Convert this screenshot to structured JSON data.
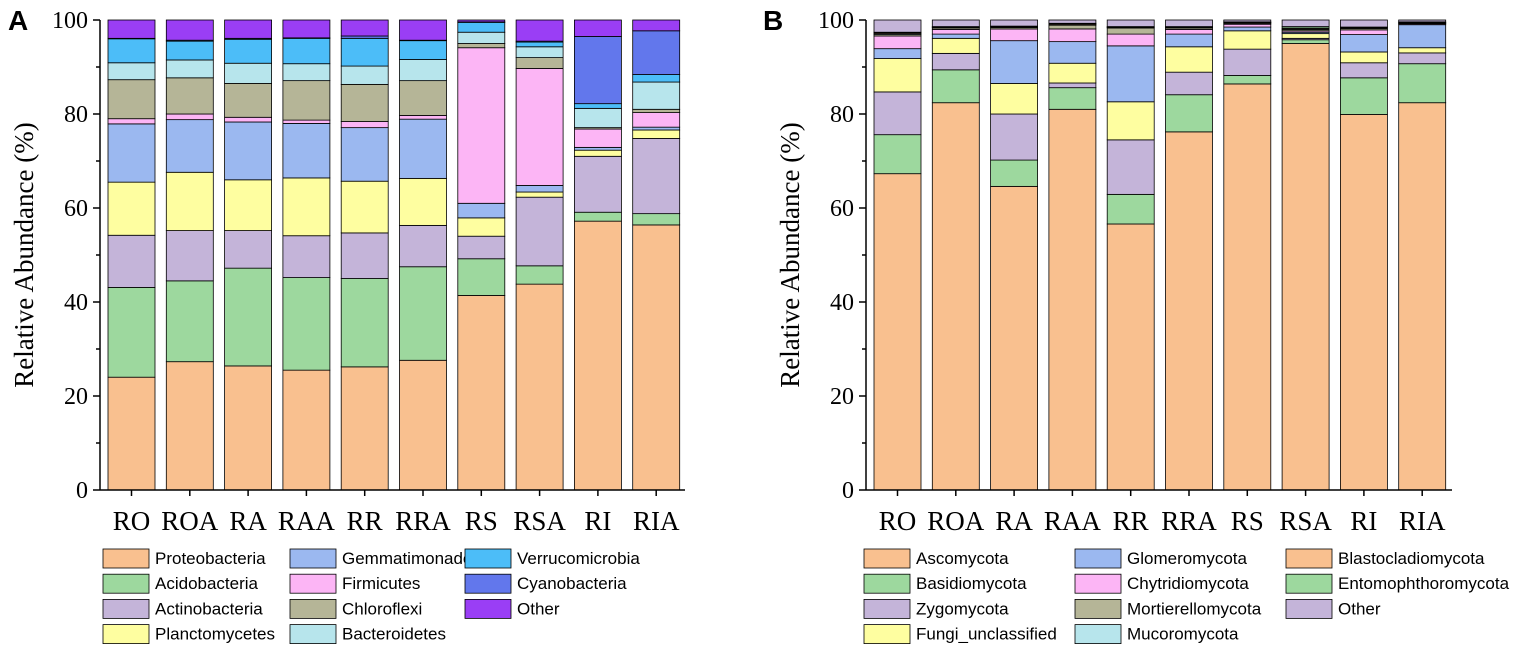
{
  "chart_data": [
    {
      "type": "bar",
      "stacked": true,
      "panel": "A",
      "xlabel": "",
      "ylabel": "Relative Abundance (%)",
      "ylim": [
        0,
        100
      ],
      "yticks": [
        0,
        20,
        40,
        60,
        80,
        100
      ],
      "categories": [
        "RO",
        "ROA",
        "RA",
        "RAA",
        "RR",
        "RRA",
        "RS",
        "RSA",
        "RI",
        "RIA"
      ],
      "legend_columns": 3,
      "series": [
        {
          "name": "Proteobacteria",
          "color": "#F9C08F",
          "values": [
            24.0,
            27.3,
            26.4,
            25.5,
            26.2,
            27.6,
            41.4,
            43.8,
            57.2,
            56.4
          ]
        },
        {
          "name": "Acidobacteria",
          "color": "#9DD89E",
          "values": [
            19.1,
            17.2,
            20.8,
            19.7,
            18.8,
            19.9,
            7.8,
            3.9,
            1.9,
            2.4
          ]
        },
        {
          "name": "Actinobacteria",
          "color": "#C4B4D9",
          "values": [
            11.1,
            10.7,
            8.0,
            8.9,
            9.7,
            8.8,
            4.8,
            14.6,
            11.9,
            16.0
          ]
        },
        {
          "name": "Planctomycetes",
          "color": "#FEFEA0",
          "values": [
            11.3,
            12.4,
            10.8,
            12.3,
            11.0,
            10.0,
            3.9,
            1.1,
            1.3,
            1.8
          ]
        },
        {
          "name": "Gemmatimonadetes",
          "color": "#9BB8F0",
          "values": [
            12.4,
            11.2,
            12.3,
            11.6,
            11.4,
            12.6,
            3.1,
            1.4,
            0.6,
            0.6
          ]
        },
        {
          "name": "Firmicutes",
          "color": "#FCB5F5",
          "values": [
            1.1,
            1.2,
            1.0,
            0.7,
            1.3,
            0.8,
            33.1,
            24.9,
            3.9,
            3.1
          ]
        },
        {
          "name": "Chloroflexi",
          "color": "#B5B597",
          "values": [
            8.3,
            7.7,
            7.2,
            8.4,
            7.9,
            7.4,
            0.9,
            2.3,
            0.3,
            0.7
          ]
        },
        {
          "name": "Bacteroidetes",
          "color": "#B7E5EC",
          "values": [
            3.6,
            3.8,
            4.3,
            3.6,
            3.9,
            4.5,
            2.4,
            2.3,
            4.1,
            5.8
          ]
        },
        {
          "name": "Verrucomicrobia",
          "color": "#4CBDF8",
          "values": [
            5.1,
            4.0,
            5.1,
            5.4,
            5.9,
            4.0,
            2.1,
            1.0,
            1.0,
            1.6
          ]
        },
        {
          "name": "Cyanobacteria",
          "color": "#6277EC",
          "values": [
            0.1,
            0.2,
            0.2,
            0.1,
            0.5,
            0.1,
            0.1,
            0.2,
            14.3,
            9.3
          ]
        },
        {
          "name": "Other",
          "color": "#9A3EF5",
          "values": [
            3.9,
            4.3,
            3.9,
            3.8,
            3.4,
            4.3,
            0.4,
            4.5,
            3.5,
            2.3
          ]
        }
      ]
    },
    {
      "type": "bar",
      "stacked": true,
      "panel": "B",
      "xlabel": "",
      "ylabel": "Relative Abundance (%)",
      "ylim": [
        0,
        100
      ],
      "yticks": [
        0,
        20,
        40,
        60,
        80,
        100
      ],
      "categories": [
        "RO",
        "ROA",
        "RA",
        "RAA",
        "RR",
        "RRA",
        "RS",
        "RSA",
        "RI",
        "RIA"
      ],
      "legend_columns": 3,
      "series": [
        {
          "name": "Ascomycota",
          "color": "#F9C08F",
          "values": [
            67.3,
            82.4,
            64.6,
            81.0,
            56.6,
            76.2,
            86.4,
            95.0,
            79.9,
            82.4
          ]
        },
        {
          "name": "Basidiomycota",
          "color": "#9DD89E",
          "values": [
            8.3,
            7.0,
            5.6,
            4.6,
            6.3,
            7.9,
            1.8,
            0.8,
            7.8,
            8.3
          ]
        },
        {
          "name": "Zygomycota",
          "color": "#C4B4D9",
          "values": [
            9.1,
            3.5,
            9.8,
            1.0,
            11.6,
            4.8,
            5.6,
            0.3,
            3.2,
            2.3
          ]
        },
        {
          "name": "Fungi_unclassified",
          "color": "#FEFEA0",
          "values": [
            7.1,
            3.2,
            6.5,
            4.2,
            8.1,
            5.4,
            3.9,
            1.0,
            2.3,
            1.1
          ]
        },
        {
          "name": "Glomeromycota",
          "color": "#9BB8F0",
          "values": [
            2.1,
            0.9,
            9.1,
            4.6,
            11.9,
            2.7,
            0.8,
            0.3,
            3.7,
            4.9
          ]
        },
        {
          "name": "Chytridiomycota",
          "color": "#FCB5F5",
          "values": [
            2.7,
            1.0,
            2.5,
            2.7,
            2.5,
            1.0,
            0.6,
            0.3,
            1.0,
            0.2
          ]
        },
        {
          "name": "Mortierellomycota",
          "color": "#B5B597",
          "values": [
            0.3,
            0.3,
            0.3,
            0.8,
            1.3,
            0.3,
            0.2,
            0.3,
            0.3,
            0.1
          ]
        },
        {
          "name": "Mucoromycota",
          "color": "#B7E5EC",
          "values": [
            0.2,
            0.1,
            0.1,
            0.1,
            0.1,
            0.1,
            0.1,
            0.1,
            0.1,
            0.1
          ]
        },
        {
          "name": "Blastocladiomycota",
          "color": "#F9C08F",
          "values": [
            0.2,
            0.1,
            0.1,
            0.2,
            0.1,
            0.1,
            0.1,
            0.2,
            0.1,
            0.1
          ]
        },
        {
          "name": "Entomophthoromycota",
          "color": "#9DD89E",
          "values": [
            0.1,
            0.1,
            0.1,
            0.1,
            0.1,
            0.1,
            0.1,
            0.3,
            0.1,
            0.1
          ]
        },
        {
          "name": "Other",
          "color": "#C4B4D9",
          "values": [
            2.6,
            1.4,
            1.3,
            0.7,
            1.4,
            1.4,
            0.4,
            1.4,
            1.5,
            0.4
          ]
        }
      ]
    }
  ]
}
